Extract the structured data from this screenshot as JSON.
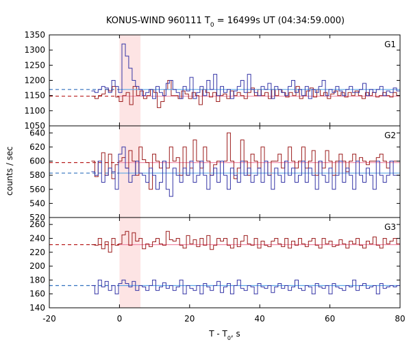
{
  "chart_data": {
    "type": "line",
    "title_prefix": "KONUS-WIND 960111 T",
    "title_sub": "0",
    "title_suffix": " = 16499s UT (04:34:59.000)",
    "xlabel_prefix": "T - T",
    "xlabel_sub": "0",
    "xlabel_suffix": ", s",
    "ylabel": "counts / sec",
    "xlim": [
      -20,
      80
    ],
    "x_ticks": [
      "-20",
      "0",
      "20",
      "40",
      "60",
      "80"
    ],
    "x_tick_values": [
      -20,
      0,
      20,
      40,
      60,
      80
    ],
    "shaded_interval": [
      0,
      6
    ],
    "colors": {
      "red": "#9b1b1b",
      "blue": "#3434a6",
      "red_bg_line": "#f08ca8",
      "blue_bg_line": "#5aa6e6",
      "blue_bg_dash": "#2f6fbe",
      "red_bg_dash": "#b81e1e",
      "peak_fill": "#c8e6f5",
      "shade": "#fde4e4"
    },
    "panels": [
      {
        "label": "G1",
        "ylim": [
          1050,
          1350
        ],
        "y_ticks": [
          "1050",
          "1100",
          "1150",
          "1200",
          "1250",
          "1300",
          "1350"
        ],
        "y_tick_values": [
          1050,
          1100,
          1150,
          1200,
          1250,
          1300,
          1350
        ],
        "series": [
          {
            "color_key": "red",
            "background": 1148,
            "values": [
              1148,
              1140,
              1150,
              1155,
              1170,
              1165,
              1180,
              1145,
              1130,
              1150,
              1160,
              1120,
              1180,
              1150,
              1165,
              1140,
              1150,
              1170,
              1160,
              1110,
              1130,
              1170,
              1200,
              1150,
              1150,
              1140,
              1165,
              1155,
              1140,
              1160,
              1150,
              1120,
              1170,
              1160,
              1145,
              1160,
              1130,
              1150,
              1155,
              1140,
              1165,
              1150,
              1160,
              1150,
              1140,
              1160,
              1175,
              1150,
              1170,
              1150,
              1160,
              1140,
              1170,
              1150,
              1170,
              1160,
              1145,
              1160,
              1150,
              1180,
              1140,
              1150,
              1165,
              1175,
              1145,
              1170,
              1150,
              1160,
              1140,
              1155,
              1165,
              1150,
              1160,
              1145,
              1160,
              1150,
              1165,
              1150,
              1140,
              1160,
              1150,
              1160,
              1145,
              1150,
              1160,
              1150,
              1145,
              1160,
              1150
            ]
          },
          {
            "color_key": "blue",
            "background": 1170,
            "values": [
              1165,
              1160,
              1170,
              1180,
              1175,
              1160,
              1200,
              1180,
              1160,
              1320,
              1280,
              1240,
              1200,
              1180,
              1170,
              1150,
              1160,
              1170,
              1140,
              1180,
              1160,
              1150,
              1190,
              1200,
              1170,
              1160,
              1140,
              1180,
              1165,
              1210,
              1140,
              1160,
              1180,
              1150,
              1200,
              1170,
              1220,
              1150,
              1180,
              1160,
              1170,
              1140,
              1165,
              1180,
              1200,
              1160,
              1220,
              1170,
              1160,
              1150,
              1180,
              1170,
              1190,
              1140,
              1180,
              1170,
              1160,
              1150,
              1180,
              1200,
              1160,
              1170,
              1150,
              1180,
              1140,
              1170,
              1160,
              1180,
              1200,
              1150,
              1170,
              1160,
              1180,
              1165,
              1150,
              1170,
              1180,
              1160,
              1160,
              1170,
              1190,
              1150,
              1170,
              1160,
              1170,
              1180,
              1150,
              1165,
              1160,
              1175,
              1165
            ]
          }
        ]
      },
      {
        "label": "G2",
        "ylim": [
          520,
          650
        ],
        "y_ticks": [
          "520",
          "540",
          "560",
          "580",
          "600",
          "620",
          "640"
        ],
        "y_tick_values": [
          520,
          540,
          560,
          580,
          600,
          620,
          640
        ],
        "series": [
          {
            "color_key": "red",
            "background": 598,
            "values": [
              600,
              578,
              600,
              612,
              580,
              610,
              575,
              595,
              600,
              605,
              590,
              615,
              600,
              580,
              620,
              602,
              598,
              560,
              610,
              600,
              590,
              600,
              590,
              620,
              600,
              605,
              580,
              620,
              580,
              590,
              630,
              600,
              590,
              620,
              600,
              580,
              595,
              600,
              600,
              600,
              640,
              600,
              575,
              590,
              630,
              600,
              580,
              610,
              600,
              590,
              620,
              600,
              580,
              600,
              600,
              610,
              590,
              600,
              620,
              600,
              590,
              600,
              620,
              590,
              600,
              615,
              580,
              600,
              590,
              615,
              600,
              580,
              600,
              610,
              600,
              585,
              600,
              610,
              600,
              605,
              600,
              595,
              600,
              600,
              605,
              610,
              600,
              590,
              600,
              600,
              600
            ]
          },
          {
            "color_key": "blue",
            "background": 583,
            "values": [
              585,
              580,
              600,
              570,
              580,
              590,
              585,
              560,
              610,
              620,
              590,
              570,
              580,
              600,
              583,
              580,
              570,
              590,
              580,
              560,
              570,
              600,
              560,
              550,
              590,
              580,
              570,
              590,
              580,
              600,
              570,
              580,
              600,
              580,
              560,
              580,
              590,
              570,
              600,
              580,
              560,
              590,
              580,
              570,
              600,
              580,
              590,
              570,
              580,
              590,
              570,
              600,
              580,
              560,
              590,
              580,
              570,
              600,
              580,
              590,
              570,
              580,
              600,
              570,
              590,
              580,
              560,
              600,
              580,
              570,
              590,
              560,
              580,
              600,
              570,
              590,
              580,
              560,
              600,
              580,
              570,
              590,
              580,
              560,
              600,
              580,
              570,
              580,
              600,
              580,
              580
            ]
          }
        ]
      },
      {
        "label": "G3",
        "ylim": [
          140,
          270
        ],
        "y_ticks": [
          "140",
          "160",
          "180",
          "200",
          "220",
          "240",
          "260"
        ],
        "y_tick_values": [
          140,
          160,
          180,
          200,
          220,
          240,
          260
        ],
        "series": [
          {
            "color_key": "red",
            "background": 231,
            "values": [
              231,
              230,
              240,
              225,
              235,
              220,
              240,
              230,
              232,
              245,
              250,
              230,
              248,
              236,
              240,
              225,
              232,
              228,
              235,
              240,
              232,
              230,
              250,
              238,
              236,
              240,
              230,
              226,
              244,
              232,
              238,
              228,
              240,
              230,
              244,
              224,
              230,
              240,
              236,
              240,
              230,
              226,
              240,
              228,
              236,
              244,
              232,
              230,
              240,
              226,
              236,
              230,
              228,
              236,
              240,
              232,
              228,
              240,
              226,
              236,
              230,
              240,
              232,
              228,
              236,
              240,
              230,
              226,
              240,
              232,
              236,
              228,
              230,
              238,
              232,
              226,
              236,
              232,
              240,
              230,
              226,
              236,
              232,
              242,
              230,
              226,
              240,
              232,
              236,
              240,
              232
            ]
          },
          {
            "color_key": "blue",
            "background": 172,
            "values": [
              172,
              160,
              180,
              170,
              178,
              165,
              172,
              160,
              175,
              180,
              175,
              170,
              178,
              165,
              172,
              170,
              165,
              172,
              180,
              165,
              170,
              176,
              168,
              172,
              165,
              170,
              180,
              160,
              172,
              168,
              165,
              172,
              160,
              175,
              170,
              165,
              172,
              178,
              162,
              170,
              175,
              160,
              172,
              180,
              168,
              165,
              172,
              170,
              160,
              175,
              170,
              168,
              172,
              162,
              170,
              175,
              168,
              172,
              165,
              170,
              180,
              168,
              165,
              172,
              170,
              160,
              175,
              170,
              168,
              172,
              160,
              175,
              170,
              168,
              165,
              172,
              170,
              180,
              165,
              172,
              175,
              168,
              170,
              172,
              160,
              175,
              168,
              170,
              172,
              170,
              172
            ]
          }
        ]
      }
    ]
  }
}
